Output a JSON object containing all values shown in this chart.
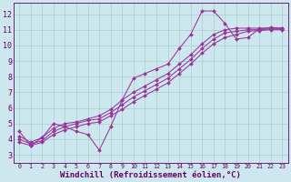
{
  "background_color": "#cce8ee",
  "grid_color": "#aacccc",
  "line_color": "#993399",
  "xlabel": "Windchill (Refroidissement éolien,°C)",
  "xlabel_fontsize": 6.5,
  "ylabel_ticks": [
    3,
    4,
    5,
    6,
    7,
    8,
    9,
    10,
    11,
    12
  ],
  "xlim": [
    -0.5,
    23.5
  ],
  "ylim": [
    2.5,
    12.7
  ],
  "jagged_x": [
    0,
    1,
    2,
    3,
    4,
    5,
    6,
    7,
    8,
    9,
    10,
    11,
    12,
    13,
    14,
    15,
    16,
    17,
    18,
    19,
    20,
    21,
    22,
    23
  ],
  "jagged_y": [
    4.5,
    3.6,
    4.1,
    5.0,
    4.8,
    4.5,
    4.3,
    3.3,
    4.8,
    6.5,
    7.9,
    8.2,
    8.5,
    8.8,
    9.8,
    10.7,
    12.2,
    12.2,
    11.4,
    10.4,
    10.5,
    11.05,
    11.15,
    11.1
  ],
  "smooth1_x": [
    0,
    1,
    2,
    3,
    4,
    5,
    6,
    7,
    8,
    9,
    10,
    11,
    12,
    13,
    14,
    15,
    16,
    17,
    18,
    19,
    20,
    21,
    22,
    23
  ],
  "smooth1_y": [
    4.2,
    3.8,
    4.1,
    4.7,
    5.0,
    5.1,
    5.3,
    5.5,
    5.9,
    6.5,
    7.0,
    7.4,
    7.8,
    8.2,
    8.8,
    9.4,
    10.1,
    10.7,
    11.0,
    11.1,
    11.1,
    11.1,
    11.1,
    11.1
  ],
  "smooth2_x": [
    0,
    1,
    2,
    3,
    4,
    5,
    6,
    7,
    8,
    9,
    10,
    11,
    12,
    13,
    14,
    15,
    16,
    17,
    18,
    19,
    20,
    21,
    22,
    23
  ],
  "smooth2_y": [
    4.0,
    3.7,
    3.9,
    4.5,
    4.8,
    5.0,
    5.2,
    5.3,
    5.7,
    6.2,
    6.7,
    7.1,
    7.5,
    7.9,
    8.5,
    9.1,
    9.8,
    10.4,
    10.8,
    10.9,
    11.0,
    11.0,
    11.05,
    11.05
  ],
  "smooth3_x": [
    0,
    1,
    2,
    3,
    4,
    5,
    6,
    7,
    8,
    9,
    10,
    11,
    12,
    13,
    14,
    15,
    16,
    17,
    18,
    19,
    20,
    21,
    22,
    23
  ],
  "smooth3_y": [
    3.8,
    3.6,
    3.8,
    4.3,
    4.6,
    4.8,
    5.0,
    5.1,
    5.5,
    5.9,
    6.4,
    6.8,
    7.2,
    7.6,
    8.2,
    8.8,
    9.5,
    10.1,
    10.5,
    10.7,
    10.9,
    10.95,
    11.0,
    11.0
  ]
}
